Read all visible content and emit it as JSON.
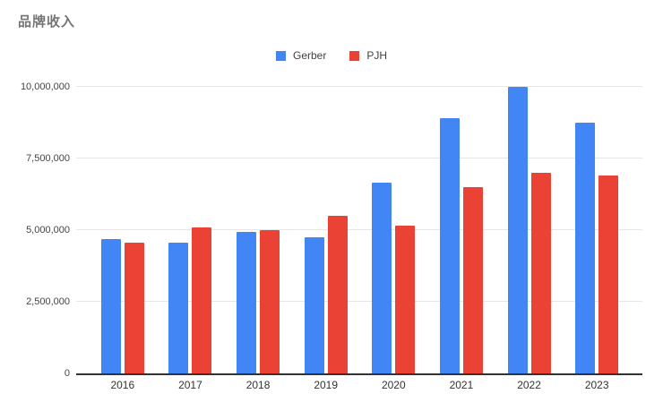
{
  "chart_data": {
    "type": "bar",
    "title": "品牌收入",
    "categories": [
      "2016",
      "2017",
      "2018",
      "2019",
      "2020",
      "2021",
      "2022",
      "2023"
    ],
    "series": [
      {
        "name": "Gerber",
        "color": "#4285F4",
        "values": [
          4700000,
          4550000,
          4950000,
          4750000,
          6650000,
          8900000,
          10000000,
          8750000
        ]
      },
      {
        "name": "PJH",
        "color": "#EA4335",
        "values": [
          4550000,
          5100000,
          5000000,
          5500000,
          5150000,
          6500000,
          7000000,
          6900000
        ]
      }
    ],
    "xlabel": "",
    "ylabel": "",
    "ylim": [
      0,
      10000000
    ],
    "yticks": [
      {
        "value": 0,
        "label": "0"
      },
      {
        "value": 2500000,
        "label": "2,500,000"
      },
      {
        "value": 5000000,
        "label": "5,000,000"
      },
      {
        "value": 7500000,
        "label": "7,500,000"
      },
      {
        "value": 10000000,
        "label": "10,000,000"
      }
    ],
    "grid": true,
    "legend_position": "top-center",
    "colors": {
      "background": "#ffffff",
      "gridline": "#e6e6e6",
      "axis_line": "#333333",
      "tick_text": "#444444",
      "title_text": "#757575",
      "legend_text": "#424242"
    }
  }
}
